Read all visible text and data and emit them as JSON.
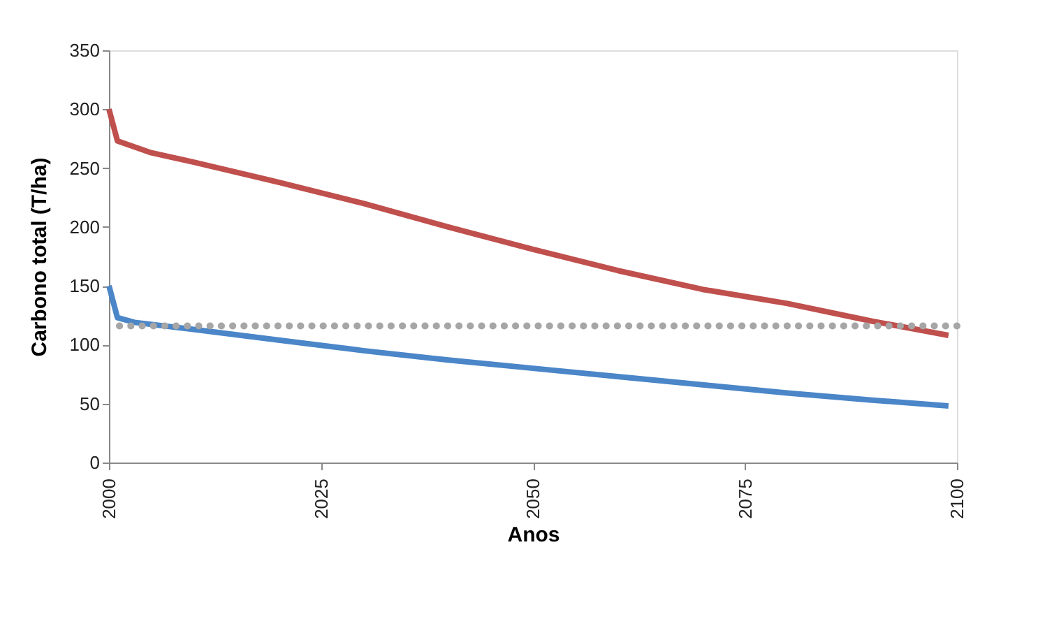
{
  "chart_data": {
    "type": "line",
    "xlabel": "Anos",
    "ylabel": "Carbono total (T/ha)",
    "xlim": [
      2000,
      2100
    ],
    "xticks": [
      2000,
      2025,
      2050,
      2075,
      2100
    ],
    "ylim": [
      0,
      350
    ],
    "yticks": [
      0,
      50,
      100,
      150,
      200,
      250,
      300,
      350
    ],
    "grid": false,
    "marker": "none",
    "line_style": "solid",
    "series": [
      {
        "color": "#c0504d",
        "x": [
          2000,
          2001,
          2003,
          2005,
          2010,
          2020,
          2030,
          2040,
          2050,
          2060,
          2070,
          2080,
          2090,
          2099
        ],
        "values": [
          300,
          273,
          268,
          263,
          255,
          238,
          220,
          200,
          181,
          163,
          147,
          135,
          120,
          108
        ]
      },
      {
        "color": "#4a86c8",
        "x": [
          2000,
          2001,
          2003,
          2010,
          2020,
          2030,
          2040,
          2050,
          2060,
          2070,
          2080,
          2090,
          2099
        ],
        "values": [
          150,
          123,
          119,
          113,
          104,
          95,
          87,
          80,
          73,
          66,
          59,
          53,
          48
        ]
      }
    ],
    "ref_lines": [
      {
        "axis": "y",
        "value": 116,
        "color": "#a6a6a6",
        "line_style": "dotted"
      }
    ]
  }
}
